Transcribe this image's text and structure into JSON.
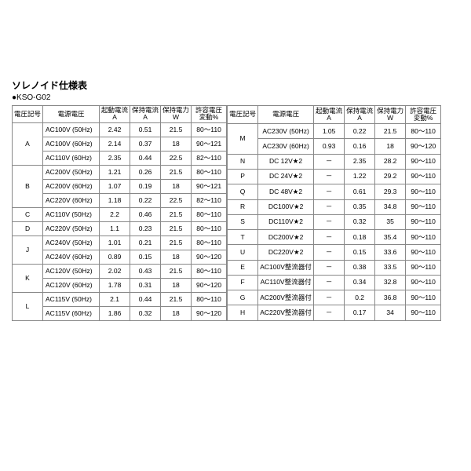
{
  "title": "ソレノイド仕様表",
  "subtitle": "●KSO-G02",
  "headers": {
    "code": "電圧記号",
    "voltage": "電源電圧",
    "startA": "起動電流\nA",
    "holdA": "保持電流\nA",
    "holdW": "保持電力\nW",
    "tolPct": "許容電圧\n変動%"
  },
  "left": [
    {
      "code": "A",
      "rows": [
        [
          "AC100V (50Hz)",
          "2.42",
          "0.51",
          "21.5",
          "80～110"
        ],
        [
          "AC100V (60Hz)",
          "2.14",
          "0.37",
          "18",
          "90～121"
        ],
        [
          "AC110V (60Hz)",
          "2.35",
          "0.44",
          "22.5",
          "82～110"
        ]
      ]
    },
    {
      "code": "B",
      "rows": [
        [
          "AC200V (50Hz)",
          "1.21",
          "0.26",
          "21.5",
          "80～110"
        ],
        [
          "AC200V (60Hz)",
          "1.07",
          "0.19",
          "18",
          "90～121"
        ],
        [
          "AC220V (60Hz)",
          "1.18",
          "0.22",
          "22.5",
          "82～110"
        ]
      ]
    },
    {
      "code": "C",
      "rows": [
        [
          "AC110V (50Hz)",
          "2.2",
          "0.46",
          "21.5",
          "80～110"
        ]
      ]
    },
    {
      "code": "D",
      "rows": [
        [
          "AC220V (50Hz)",
          "1.1",
          "0.23",
          "21.5",
          "80～110"
        ]
      ]
    },
    {
      "code": "J",
      "rows": [
        [
          "AC240V (50Hz)",
          "1.01",
          "0.21",
          "21.5",
          "80～110"
        ],
        [
          "AC240V (60Hz)",
          "0.89",
          "0.15",
          "18",
          "90～120"
        ]
      ]
    },
    {
      "code": "K",
      "rows": [
        [
          "AC120V (50Hz)",
          "2.02",
          "0.43",
          "21.5",
          "80～110"
        ],
        [
          "AC120V (60Hz)",
          "1.78",
          "0.31",
          "18",
          "90～120"
        ]
      ]
    },
    {
      "code": "L",
      "rows": [
        [
          "AC115V (50Hz)",
          "2.1",
          "0.44",
          "21.5",
          "80～110"
        ],
        [
          "AC115V (60Hz)",
          "1.86",
          "0.32",
          "18",
          "90～120"
        ]
      ]
    }
  ],
  "right": [
    {
      "code": "M",
      "rows": [
        [
          "AC230V (50Hz)",
          "1.05",
          "0.22",
          "21.5",
          "80～110"
        ],
        [
          "AC230V (60Hz)",
          "0.93",
          "0.16",
          "18",
          "90～120"
        ]
      ]
    },
    {
      "code": "N",
      "rows": [
        [
          "DC 12V★2",
          "－",
          "2.35",
          "28.2",
          "90～110"
        ]
      ]
    },
    {
      "code": "P",
      "rows": [
        [
          "DC 24V★2",
          "－",
          "1.22",
          "29.2",
          "90～110"
        ]
      ]
    },
    {
      "code": "Q",
      "rows": [
        [
          "DC 48V★2",
          "－",
          "0.61",
          "29.3",
          "90～110"
        ]
      ]
    },
    {
      "code": "R",
      "rows": [
        [
          "DC100V★2",
          "－",
          "0.35",
          "34.8",
          "90～110"
        ]
      ]
    },
    {
      "code": "S",
      "rows": [
        [
          "DC110V★2",
          "－",
          "0.32",
          "35",
          "90～110"
        ]
      ]
    },
    {
      "code": "T",
      "rows": [
        [
          "DC200V★2",
          "－",
          "0.18",
          "35.4",
          "90～110"
        ]
      ]
    },
    {
      "code": "U",
      "rows": [
        [
          "DC220V★2",
          "－",
          "0.15",
          "33.6",
          "90～110"
        ]
      ]
    },
    {
      "code": "E",
      "rows": [
        [
          "AC100V整流器付",
          "－",
          "0.38",
          "33.5",
          "90～110"
        ]
      ]
    },
    {
      "code": "F",
      "rows": [
        [
          "AC110V整流器付",
          "－",
          "0.34",
          "32.8",
          "90～110"
        ]
      ]
    },
    {
      "code": "G",
      "rows": [
        [
          "AC200V整流器付",
          "－",
          "0.2",
          "36.8",
          "90～110"
        ]
      ]
    },
    {
      "code": "H",
      "rows": [
        [
          "AC220V整流器付",
          "－",
          "0.17",
          "34",
          "90～110"
        ]
      ]
    }
  ]
}
